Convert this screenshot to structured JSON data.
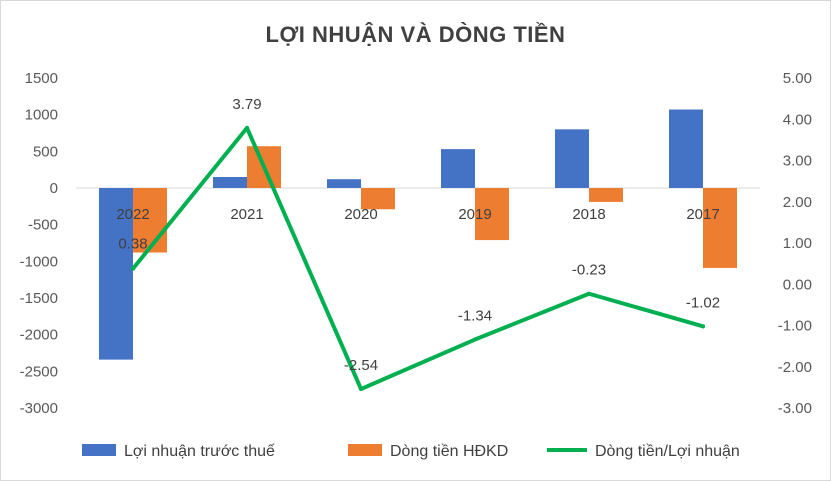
{
  "chart_data": {
    "type": "bar+line",
    "title": "LỢI NHUẬN VÀ DÒNG TIỀN",
    "categories": [
      "2022",
      "2021",
      "2020",
      "2019",
      "2018",
      "2017"
    ],
    "series": [
      {
        "name": "Lợi nhuận trước thuế",
        "type": "bar",
        "axis": "left",
        "color": "#4472C4",
        "values": [
          -2340,
          150,
          120,
          530,
          800,
          1070
        ]
      },
      {
        "name": "Dòng tiền HĐKD",
        "type": "bar",
        "axis": "left",
        "color": "#ED7D31",
        "values": [
          -880,
          570,
          -290,
          -710,
          -190,
          -1090
        ]
      },
      {
        "name": "Dòng tiền/Lợi nhuận",
        "type": "line",
        "axis": "right",
        "color": "#00B050",
        "values": [
          0.38,
          3.79,
          -2.54,
          -1.34,
          -0.23,
          -1.02
        ],
        "labels": [
          "0.38",
          "3.79",
          "-2.54",
          "-1.34",
          "-0.23",
          "-1.02"
        ]
      }
    ],
    "y_left": {
      "min": -3000,
      "max": 1500,
      "step": 500,
      "tick_labels": [
        "1500",
        "1000",
        "500",
        "0",
        "-500",
        "-1000",
        "-1500",
        "-2000",
        "-2500",
        "-3000"
      ]
    },
    "y_right": {
      "min": -3,
      "max": 5,
      "step": 1,
      "tick_labels": [
        "5.00",
        "4.00",
        "3.00",
        "2.00",
        "1.00",
        "0.00",
        "-1.00",
        "-2.00",
        "-3.00"
      ]
    },
    "grid": false,
    "legend_position": "bottom"
  }
}
